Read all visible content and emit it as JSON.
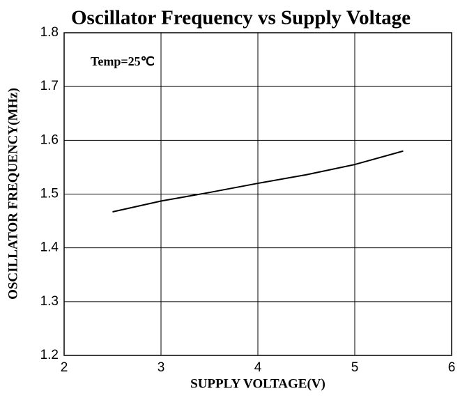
{
  "chart_data": {
    "type": "line",
    "title": "Oscillator Frequency vs Supply Voltage",
    "xlabel": "SUPPLY VOLTAGE(V)",
    "ylabel": "OSCILLATOR FREQUENCY(MHz)",
    "annotation": "Temp=25℃",
    "x": [
      2.5,
      3,
      3.5,
      4,
      4.5,
      5,
      5.5
    ],
    "series": [
      {
        "name": null,
        "color": "#000000",
        "values": [
          1.467,
          1.487,
          1.503,
          1.52,
          1.536,
          1.555,
          1.58
        ]
      }
    ],
    "xlim": [
      2,
      6
    ],
    "xticks": [
      2,
      3,
      4,
      5,
      6
    ],
    "ylim": [
      1.2,
      1.8
    ],
    "yticks": [
      1.2,
      1.3,
      1.4,
      1.5,
      1.6,
      1.7,
      1.8
    ],
    "grid": true
  }
}
